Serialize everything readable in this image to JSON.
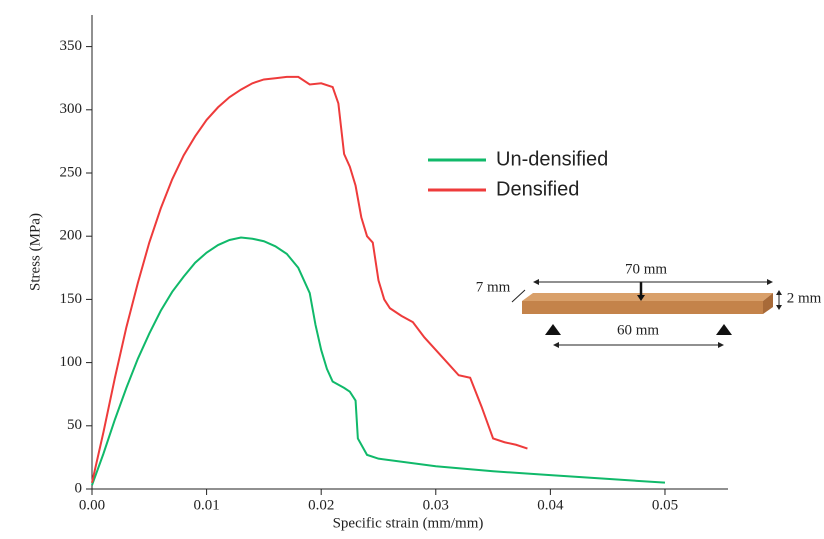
{
  "chart_data": {
    "type": "line",
    "x_label": "Specific strain (mm/mm)",
    "y_label": "Stress (MPa)",
    "xlim": [
      0,
      0.0555
    ],
    "ylim": [
      0,
      375
    ],
    "xticks": [
      {
        "value": 0,
        "label": "0.00"
      },
      0.01,
      0.02,
      0.03,
      0.04,
      0.05
    ],
    "yticks": [
      0,
      50,
      100,
      150,
      200,
      250,
      300,
      350
    ],
    "series": [
      {
        "name": "Un-densified",
        "color": "#10b96a",
        "x": [
          0,
          0.001,
          0.002,
          0.003,
          0.004,
          0.005,
          0.006,
          0.007,
          0.008,
          0.009,
          0.01,
          0.011,
          0.012,
          0.013,
          0.014,
          0.015,
          0.016,
          0.017,
          0.018,
          0.019,
          0.0195,
          0.02,
          0.0205,
          0.021,
          0.022,
          0.0225,
          0.023,
          0.0232,
          0.024,
          0.025,
          0.03,
          0.035,
          0.04,
          0.045,
          0.05
        ],
        "values": [
          3,
          28,
          55,
          80,
          103,
          123,
          141,
          156,
          168,
          179,
          187,
          193,
          197,
          199,
          198,
          196,
          192,
          186,
          175,
          155,
          130,
          110,
          95,
          85,
          80,
          77,
          70,
          40,
          27,
          24,
          18,
          14,
          11,
          8,
          5
        ]
      },
      {
        "name": "Densified",
        "color": "#ee3b3b",
        "x": [
          0,
          0.001,
          0.002,
          0.003,
          0.004,
          0.005,
          0.006,
          0.007,
          0.008,
          0.009,
          0.01,
          0.011,
          0.012,
          0.013,
          0.014,
          0.015,
          0.016,
          0.017,
          0.018,
          0.019,
          0.02,
          0.021,
          0.0215,
          0.022,
          0.0225,
          0.023,
          0.0235,
          0.024,
          0.0245,
          0.025,
          0.0255,
          0.026,
          0.027,
          0.028,
          0.029,
          0.03,
          0.031,
          0.032,
          0.033,
          0.034,
          0.035,
          0.036,
          0.037,
          0.038
        ],
        "values": [
          5,
          45,
          88,
          128,
          163,
          195,
          222,
          245,
          264,
          279,
          292,
          302,
          310,
          316,
          321,
          324,
          325,
          326,
          326,
          320,
          321,
          318,
          305,
          265,
          255,
          240,
          215,
          200,
          195,
          165,
          150,
          143,
          137,
          132,
          120,
          110,
          100,
          90,
          88,
          65,
          40,
          37,
          35,
          32
        ]
      }
    ],
    "inset": {
      "length": "70 mm",
      "width": "7 mm",
      "thickness": "2 mm",
      "span": "60 mm"
    }
  }
}
